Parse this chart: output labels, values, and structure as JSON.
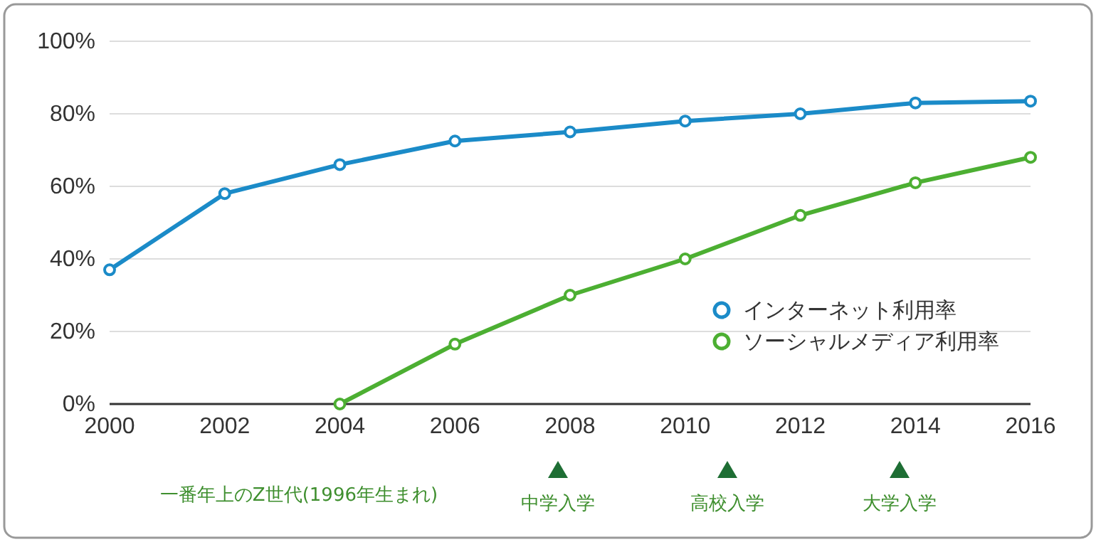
{
  "chart_data": {
    "type": "line",
    "x": [
      2000,
      2002,
      2004,
      2006,
      2008,
      2010,
      2012,
      2014,
      2016
    ],
    "series": [
      {
        "name": "インターネット利用率",
        "color": "#1b8bc8",
        "values": [
          37,
          58,
          66,
          72.5,
          75,
          78,
          80,
          83,
          83.5
        ]
      },
      {
        "name": "ソーシャルメディア利用率",
        "color": "#4caf32",
        "values": [
          null,
          null,
          0,
          16.5,
          30,
          40,
          52,
          61,
          68
        ]
      }
    ],
    "xlim": [
      2000,
      2016
    ],
    "xticks": [
      2000,
      2002,
      2004,
      2006,
      2008,
      2010,
      2012,
      2014,
      2016
    ],
    "ylim": [
      0,
      100
    ],
    "yticks": [
      {
        "value": 0,
        "label": "0%"
      },
      {
        "value": 20,
        "label": "20%"
      },
      {
        "value": 40,
        "label": "40%"
      },
      {
        "value": 60,
        "label": "60%"
      },
      {
        "value": 80,
        "label": "80%"
      },
      {
        "value": 100,
        "label": "100%"
      }
    ],
    "grid": "y",
    "legend": "right",
    "marker": "circle",
    "line_style": "solid",
    "annotations": [
      "一番年上のZ世代(1996年生まれ)",
      "中学入学",
      "高校入学",
      "大学入学"
    ]
  }
}
